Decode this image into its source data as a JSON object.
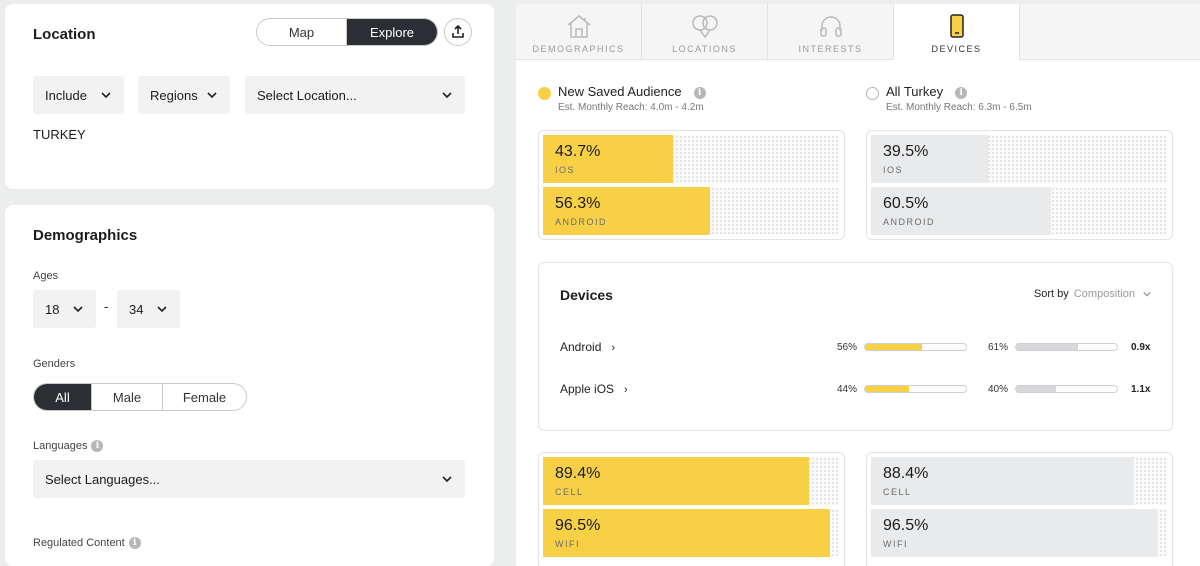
{
  "colors": {
    "accent": "#f7d046",
    "gray_fill": "#e9eaec",
    "dark": "#2b2f33"
  },
  "location": {
    "title": "Location",
    "view_toggle": [
      "Map",
      "Explore"
    ],
    "view_active": "Explore",
    "share_icon": "upload-icon",
    "include_label": "Include",
    "regions_label": "Regions",
    "select_location_label": "Select Location...",
    "selected": "TURKEY"
  },
  "demographics": {
    "title": "Demographics",
    "ages_label": "Ages",
    "age_min": "18",
    "age_dash": "-",
    "age_max": "34",
    "genders_label": "Genders",
    "genders": [
      "All",
      "Male",
      "Female"
    ],
    "gender_active": "All",
    "languages_label": "Languages",
    "languages_placeholder": "Select Languages...",
    "regulated_label": "Regulated Content"
  },
  "tabs": [
    {
      "label": "DEMOGRAPHICS",
      "icon": "house-icon"
    },
    {
      "label": "LOCATIONS",
      "icon": "map-pin-icon"
    },
    {
      "label": "INTERESTS",
      "icon": "headphones-icon"
    },
    {
      "label": "DEVICES",
      "icon": "phone-icon"
    }
  ],
  "tab_active": "DEVICES",
  "audiences": {
    "primary": {
      "name": "New Saved Audience",
      "reach": "Est. Monthly Reach: 4.0m - 4.2m"
    },
    "secondary": {
      "name": "All Turkey",
      "reach": "Est. Monthly Reach: 6.3m - 6.5m"
    }
  },
  "os_primary": [
    {
      "pct": "43.7%",
      "label": "IOS",
      "value": 43.7
    },
    {
      "pct": "56.3%",
      "label": "ANDROID",
      "value": 56.3
    }
  ],
  "os_secondary": [
    {
      "pct": "39.5%",
      "label": "IOS",
      "value": 39.5
    },
    {
      "pct": "60.5%",
      "label": "ANDROID",
      "value": 60.5
    }
  ],
  "devices": {
    "title": "Devices",
    "sort_by_label": "Sort by",
    "sort_value": "Composition",
    "rows": [
      {
        "name": "Android",
        "primary_pct": "56%",
        "primary_value": 56,
        "secondary_pct": "61%",
        "secondary_value": 61,
        "index": "0.9x"
      },
      {
        "name": "Apple iOS",
        "primary_pct": "44%",
        "primary_value": 44,
        "secondary_pct": "40%",
        "secondary_value": 40,
        "index": "1.1x"
      }
    ]
  },
  "conn_primary": [
    {
      "pct": "89.4%",
      "label": "CELL",
      "value": 89.4
    },
    {
      "pct": "96.5%",
      "label": "WIFI",
      "value": 96.5
    }
  ],
  "conn_secondary": [
    {
      "pct": "88.4%",
      "label": "CELL",
      "value": 88.4
    },
    {
      "pct": "96.5%",
      "label": "WIFI",
      "value": 96.5
    }
  ]
}
